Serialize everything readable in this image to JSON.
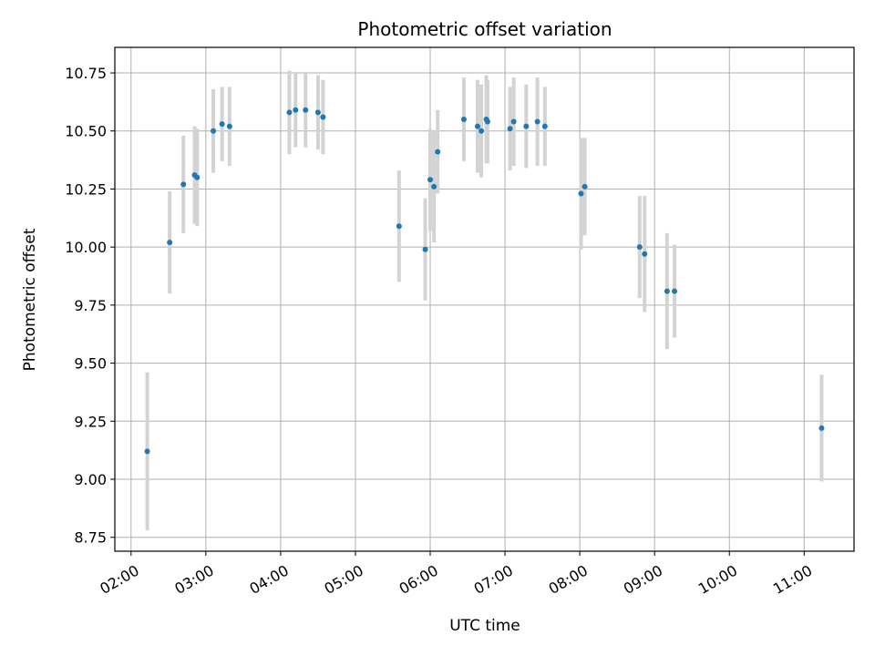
{
  "chart_data": {
    "type": "scatter",
    "title": "Photometric offset variation",
    "xlabel": "UTC time",
    "ylabel": "Photometric offset",
    "grid": true,
    "xlim": [
      "01:47",
      "11:40"
    ],
    "ylim": [
      8.69,
      10.86
    ],
    "x_ticks": [
      "02:00",
      "03:00",
      "04:00",
      "05:00",
      "06:00",
      "07:00",
      "08:00",
      "09:00",
      "10:00",
      "11:00"
    ],
    "y_ticks": [
      "8.75",
      "9.00",
      "9.25",
      "9.50",
      "9.75",
      "10.00",
      "10.25",
      "10.50",
      "10.75"
    ],
    "marker_color": "#1f77b4",
    "errorbar_color": "#d3d3d3",
    "series": [
      {
        "points": [
          {
            "x": "02:13",
            "y": 9.12,
            "err": 0.34
          },
          {
            "x": "02:31",
            "y": 10.02,
            "err": 0.22
          },
          {
            "x": "02:42",
            "y": 10.27,
            "err": 0.21
          },
          {
            "x": "02:51",
            "y": 10.31,
            "err": 0.21
          },
          {
            "x": "02:53",
            "y": 10.3,
            "err": 0.21
          },
          {
            "x": "03:06",
            "y": 10.5,
            "err": 0.18
          },
          {
            "x": "03:13",
            "y": 10.53,
            "err": 0.16
          },
          {
            "x": "03:19",
            "y": 10.52,
            "err": 0.17
          },
          {
            "x": "04:07",
            "y": 10.58,
            "err": 0.18
          },
          {
            "x": "04:12",
            "y": 10.59,
            "err": 0.16
          },
          {
            "x": "04:20",
            "y": 10.59,
            "err": 0.16
          },
          {
            "x": "04:30",
            "y": 10.58,
            "err": 0.16
          },
          {
            "x": "04:34",
            "y": 10.56,
            "err": 0.16
          },
          {
            "x": "05:35",
            "y": 10.09,
            "err": 0.24
          },
          {
            "x": "05:56",
            "y": 9.99,
            "err": 0.22
          },
          {
            "x": "06:00",
            "y": 10.29,
            "err": 0.22
          },
          {
            "x": "06:03",
            "y": 10.26,
            "err": 0.24
          },
          {
            "x": "06:06",
            "y": 10.41,
            "err": 0.18
          },
          {
            "x": "06:27",
            "y": 10.55,
            "err": 0.18
          },
          {
            "x": "06:38",
            "y": 10.52,
            "err": 0.2
          },
          {
            "x": "06:41",
            "y": 10.5,
            "err": 0.2
          },
          {
            "x": "06:45",
            "y": 10.55,
            "err": 0.19
          },
          {
            "x": "06:46",
            "y": 10.54,
            "err": 0.18
          },
          {
            "x": "07:04",
            "y": 10.51,
            "err": 0.18
          },
          {
            "x": "07:07",
            "y": 10.54,
            "err": 0.19
          },
          {
            "x": "07:17",
            "y": 10.52,
            "err": 0.18
          },
          {
            "x": "07:26",
            "y": 10.54,
            "err": 0.19
          },
          {
            "x": "07:32",
            "y": 10.52,
            "err": 0.17
          },
          {
            "x": "08:01",
            "y": 10.23,
            "err": 0.24
          },
          {
            "x": "08:04",
            "y": 10.26,
            "err": 0.21
          },
          {
            "x": "08:48",
            "y": 10.0,
            "err": 0.22
          },
          {
            "x": "08:52",
            "y": 9.97,
            "err": 0.25
          },
          {
            "x": "09:10",
            "y": 9.81,
            "err": 0.25
          },
          {
            "x": "09:16",
            "y": 9.81,
            "err": 0.2
          },
          {
            "x": "11:14",
            "y": 9.22,
            "err": 0.23
          }
        ]
      }
    ]
  }
}
